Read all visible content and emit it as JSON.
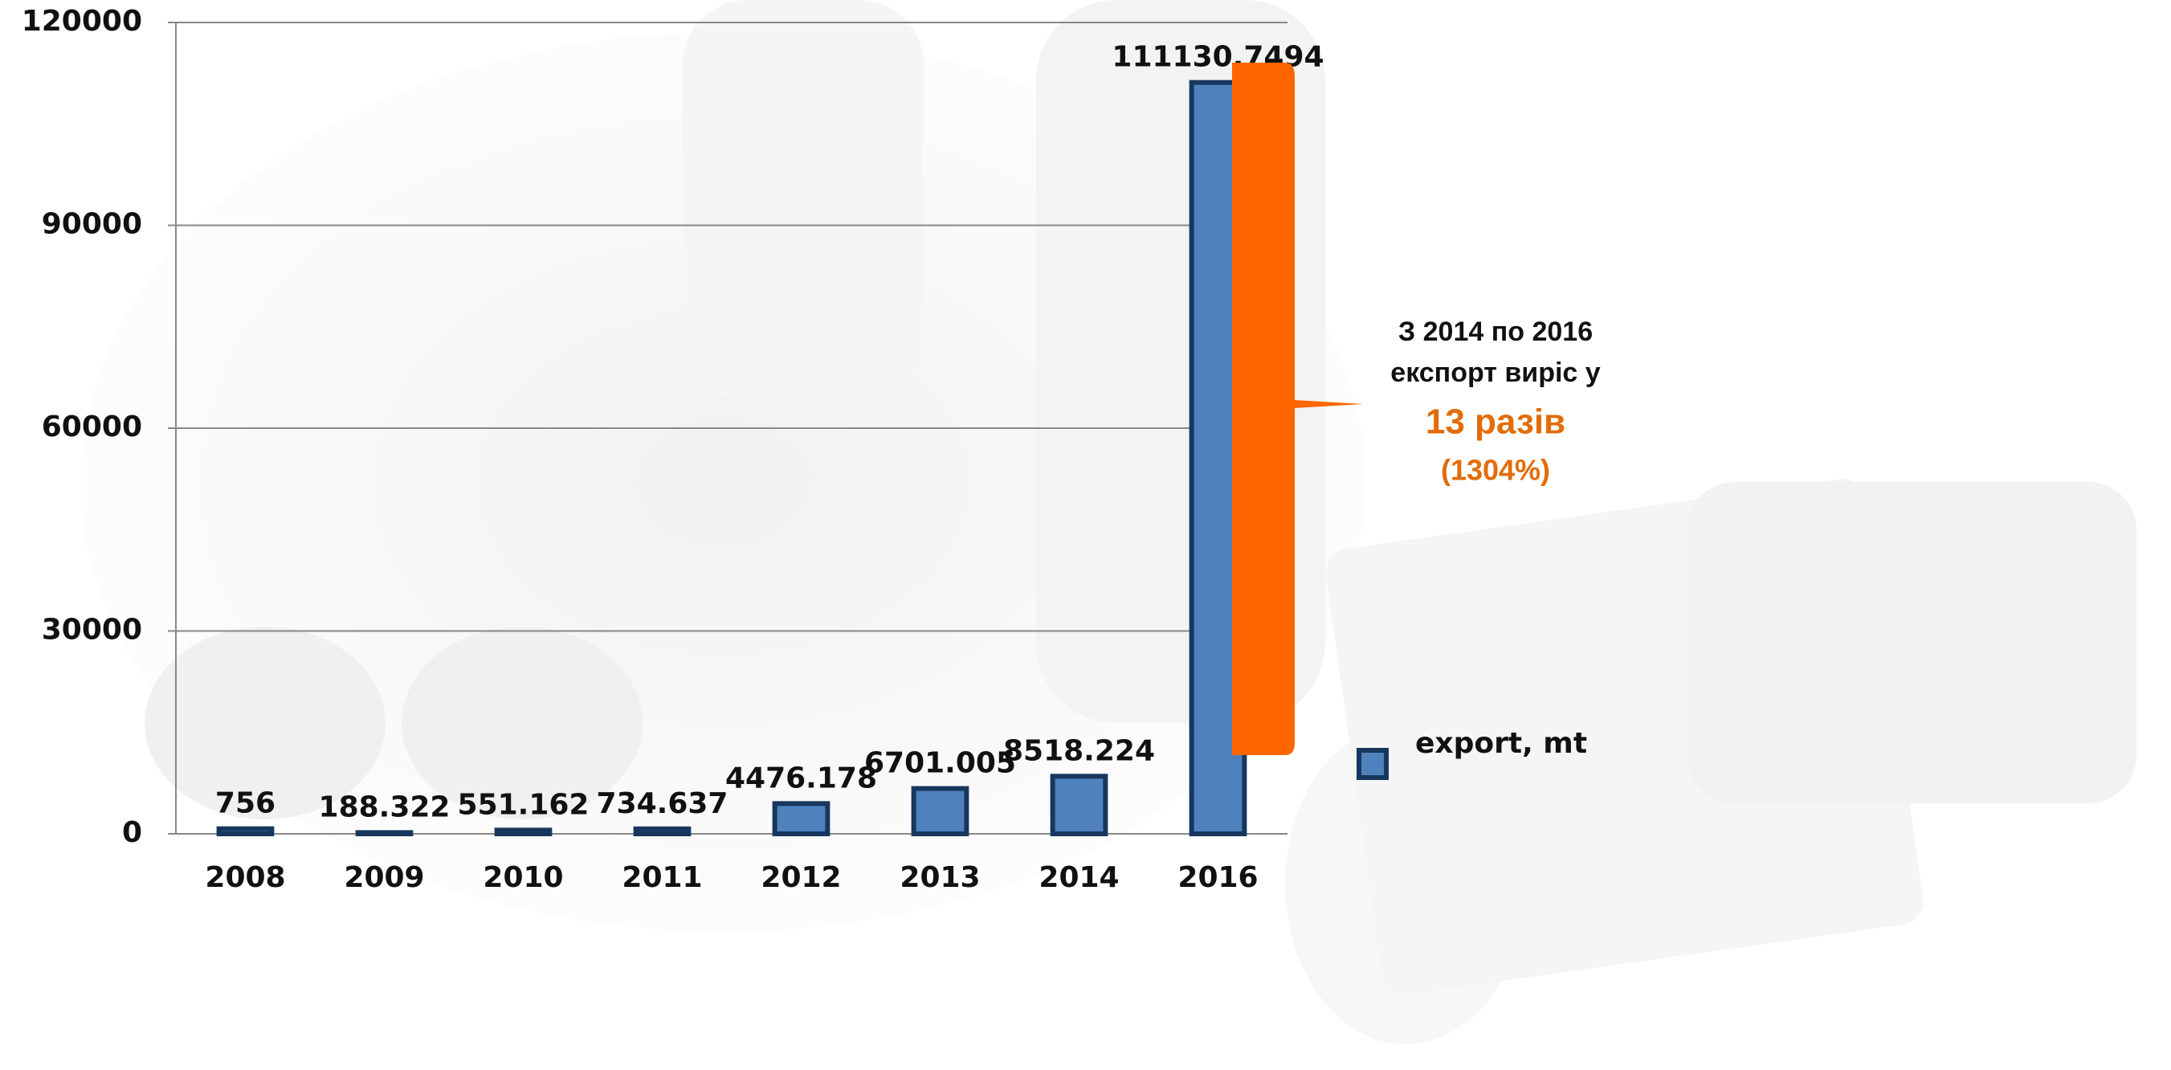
{
  "chart_data": {
    "type": "bar",
    "categories": [
      "2008",
      "2009",
      "2010",
      "2011",
      "2012",
      "2013",
      "2014",
      "2016"
    ],
    "series": [
      {
        "name": "export, mt",
        "color": "#4f81bd",
        "values": [
          756,
          188.322,
          551.162,
          734.637,
          4476.178,
          6701.005,
          8518.224,
          111130.7494
        ]
      }
    ],
    "ylim": [
      0,
      120000
    ],
    "yticks": [
      0,
      30000,
      60000,
      90000,
      120000
    ],
    "grid": true,
    "legend": "right"
  },
  "annotation": [
    "З 2014 по 2016",
    "експорт виріс у",
    "13 разів",
    "(1304%)"
  ]
}
